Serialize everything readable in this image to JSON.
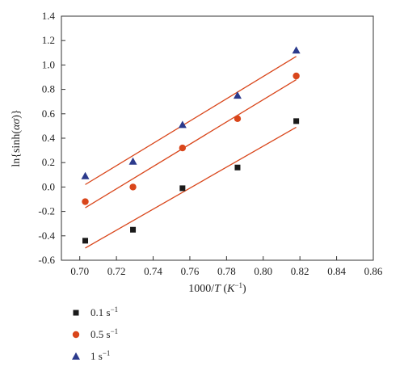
{
  "chart_data": {
    "type": "scatter",
    "xlabel": "1000/T (K⁻¹)",
    "ylabel": "ln{sinh(ασ)}",
    "xlim": [
      0.69,
      0.86
    ],
    "ylim": [
      -0.6,
      1.4
    ],
    "xticks": [
      "0.70",
      "0.72",
      "0.74",
      "0.76",
      "0.78",
      "0.80",
      "0.82",
      "0.84",
      "0.86"
    ],
    "xtick_values": [
      0.7,
      0.72,
      0.74,
      0.76,
      0.78,
      0.8,
      0.82,
      0.84,
      0.86
    ],
    "yticks": [
      "-0.6",
      "-0.4",
      "-0.2",
      "0.0",
      "0.2",
      "0.4",
      "0.6",
      "0.8",
      "1.0",
      "1.2",
      "1.4"
    ],
    "ytick_values": [
      -0.6,
      -0.4,
      -0.2,
      0.0,
      0.2,
      0.4,
      0.6,
      0.8,
      1.0,
      1.2,
      1.4
    ],
    "grid": false,
    "legend_position": "bottom-left outside",
    "fit_lines": true,
    "series": [
      {
        "name": "0.1 s⁻¹",
        "marker": "square",
        "color": "#1a1a1a",
        "x": [
          0.703,
          0.729,
          0.756,
          0.786,
          0.818
        ],
        "y": [
          -0.44,
          -0.35,
          -0.01,
          0.16,
          0.54
        ],
        "fit": [
          [
            0.703,
            -0.5
          ],
          [
            0.818,
            0.49
          ]
        ]
      },
      {
        "name": "0.5 s⁻¹",
        "marker": "circle",
        "color": "#d9461b",
        "x": [
          0.703,
          0.729,
          0.756,
          0.786,
          0.818
        ],
        "y": [
          -0.12,
          0.0,
          0.32,
          0.56,
          0.91
        ],
        "fit": [
          [
            0.703,
            -0.17
          ],
          [
            0.818,
            0.88
          ]
        ]
      },
      {
        "name": "1 s⁻¹",
        "marker": "triangle",
        "color": "#2b3a8c",
        "x": [
          0.703,
          0.729,
          0.756,
          0.786,
          0.818
        ],
        "y": [
          0.09,
          0.21,
          0.51,
          0.75,
          1.12
        ],
        "fit": [
          [
            0.703,
            0.02
          ],
          [
            0.818,
            1.07
          ]
        ]
      }
    ],
    "fit_color": "#d9461b"
  }
}
